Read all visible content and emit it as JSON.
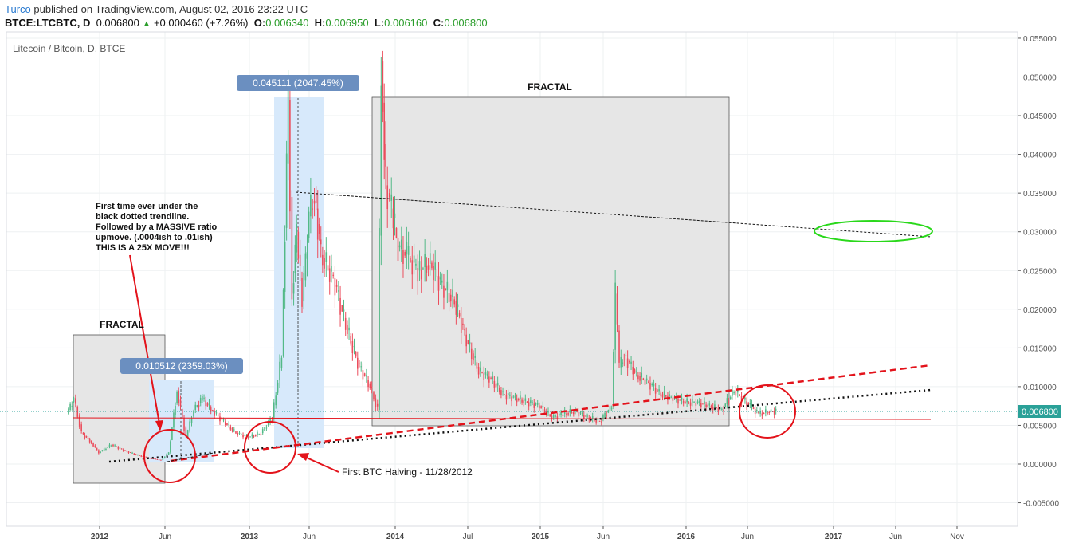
{
  "header": {
    "author": "Turco",
    "published": "published on TradingView.com, August 02, 2016 23:22 UTC"
  },
  "ohlc": {
    "symbol": "BTCE:LTCBTC, D",
    "last": "0.006800",
    "change": "+0.000460 (+7.26%)",
    "o_label": "O:",
    "o": "0.006340",
    "h_label": "H:",
    "h": "0.006950",
    "l_label": "L:",
    "l": "0.006160",
    "c_label": "C:",
    "c": "0.006800"
  },
  "chart_title": "Litecoin / Bitcoin, D, BTCE",
  "price_badge": "0.006800",
  "colors": {
    "candle_up": "#53b987",
    "candle_down": "#eb4d5c",
    "annotation_red": "#e3131b",
    "annotation_green": "#29d81a",
    "box_gray": "#e6e6e6",
    "box_blue": "#d7e9fb",
    "label_blue": "#6b8fc0",
    "price_line": "#2aa198"
  },
  "annotations": {
    "fractal_large": "FRACTAL",
    "fractal_small": "FRACTAL",
    "measure_large": "0.045111 (2047.45%)",
    "measure_small": "0.010512 (2359.03%)",
    "note_lines": [
      "First time ever under the",
      "black dotted trendline.",
      "Followed by a MASSIVE ratio",
      "upmove. (.0004ish to .01ish)",
      "THIS IS A 25X MOVE!!!"
    ],
    "halving": "First BTC Halving - 11/28/2012"
  },
  "chart_data": {
    "type": "line",
    "title": "Litecoin / Bitcoin, D, BTCE",
    "xlabel": "",
    "ylabel": "",
    "x_ticks": [
      "2012",
      "Jun",
      "2013",
      "Jun",
      "2014",
      "Jul",
      "2015",
      "Jun",
      "2016",
      "Jun",
      "2017",
      "Jun",
      "Nov"
    ],
    "y_ticks": [
      "0.055000",
      "0.050000",
      "0.045000",
      "0.040000",
      "0.035000",
      "0.030000",
      "0.025000",
      "0.020000",
      "0.015000",
      "0.010000",
      "0.005000",
      "0.000000",
      "-0.005000"
    ],
    "ylim": [
      -0.0065,
      0.056
    ],
    "grid": true,
    "series": [
      {
        "x": [
          "2011-10-15",
          "2011-11-01",
          "2011-11-20",
          "2011-12-10",
          "2012-01-01",
          "2012-02-01",
          "2012-03-01",
          "2012-04-01",
          "2012-05-01",
          "2012-06-01",
          "2012-06-20",
          "2012-07-10",
          "2012-08-01",
          "2012-08-20",
          "2012-09-10",
          "2012-10-01",
          "2012-11-01",
          "2012-12-01",
          "2013-01-01",
          "2013-02-01",
          "2013-03-01",
          "2013-03-25",
          "2013-04-10",
          "2013-04-20",
          "2013-05-01",
          "2013-05-15",
          "2013-06-01",
          "2013-06-15",
          "2013-07-01",
          "2013-08-01",
          "2013-09-01",
          "2013-10-01",
          "2013-11-01",
          "2013-11-20",
          "2013-11-29",
          "2013-12-10",
          "2013-12-25",
          "2014-01-10",
          "2014-02-01",
          "2014-03-01",
          "2014-04-01",
          "2014-05-01",
          "2014-06-01",
          "2014-07-01",
          "2014-08-01",
          "2014-09-01",
          "2014-10-01",
          "2014-11-01",
          "2014-12-01",
          "2015-01-01",
          "2015-02-01",
          "2015-03-01",
          "2015-04-01",
          "2015-05-01",
          "2015-06-01",
          "2015-07-01",
          "2015-07-10",
          "2015-07-20",
          "2015-08-01",
          "2015-09-01",
          "2015-10-01",
          "2015-11-01",
          "2015-12-01",
          "2016-01-01",
          "2016-02-01",
          "2016-03-01",
          "2016-04-01",
          "2016-05-01",
          "2016-05-20",
          "2016-06-10",
          "2016-07-01",
          "2016-08-01"
        ],
        "values": [
          0.0065,
          0.0085,
          0.004,
          0.003,
          0.0015,
          0.0025,
          0.0018,
          0.0012,
          0.0008,
          0.0005,
          0.0015,
          0.0095,
          0.0035,
          0.007,
          0.0085,
          0.007,
          0.0055,
          0.004,
          0.0035,
          0.004,
          0.006,
          0.014,
          0.047,
          0.022,
          0.03,
          0.021,
          0.032,
          0.035,
          0.027,
          0.024,
          0.018,
          0.013,
          0.01,
          0.007,
          0.052,
          0.036,
          0.033,
          0.028,
          0.027,
          0.025,
          0.026,
          0.023,
          0.021,
          0.016,
          0.012,
          0.011,
          0.009,
          0.0085,
          0.008,
          0.0075,
          0.006,
          0.0065,
          0.0068,
          0.006,
          0.0055,
          0.0075,
          0.022,
          0.0125,
          0.014,
          0.0115,
          0.0105,
          0.009,
          0.0085,
          0.008,
          0.0079,
          0.0075,
          0.007,
          0.0095,
          0.0085,
          0.0075,
          0.0065,
          0.0068
        ]
      }
    ]
  }
}
